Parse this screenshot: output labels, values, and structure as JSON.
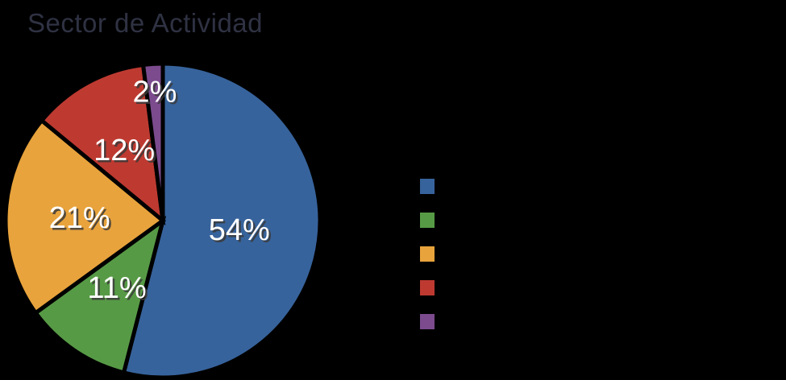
{
  "page": {
    "colors": {
      "background": "#000000",
      "title_text": "#2F3243",
      "data_label_text": "#FFFFFF",
      "data_label_shadow": "#3A3A3A",
      "slice_stroke": "#000000"
    }
  },
  "chart_data": {
    "type": "pie",
    "title": "Sector de Actividad",
    "values": [
      54,
      11,
      21,
      12,
      2
    ],
    "data_labels": [
      "54%",
      "11%",
      "21%",
      "12%",
      "2%"
    ],
    "colors": [
      "#37639C",
      "#579A46",
      "#E8A33C",
      "#BE3A31",
      "#7B4B8E"
    ],
    "start_angle_deg": 0,
    "direction": "clockwise",
    "legend": {
      "position": "right",
      "labels_visible": false,
      "swatch_colors": [
        "#37639C",
        "#579A46",
        "#E8A33C",
        "#BE3A31",
        "#7B4B8E"
      ]
    }
  }
}
